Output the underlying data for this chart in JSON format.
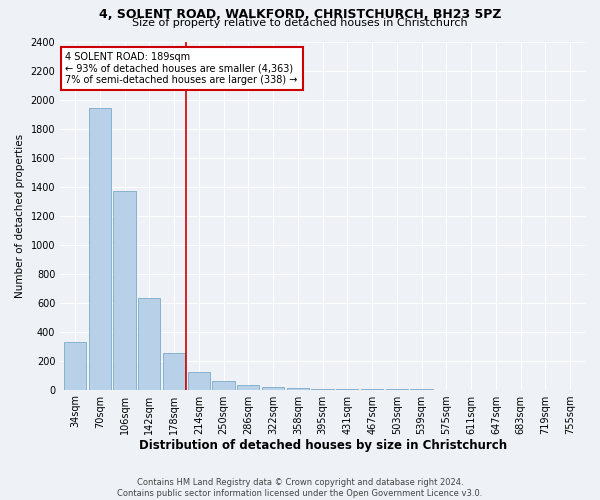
{
  "title": "4, SOLENT ROAD, WALKFORD, CHRISTCHURCH, BH23 5PZ",
  "subtitle": "Size of property relative to detached houses in Christchurch",
  "xlabel": "Distribution of detached houses by size in Christchurch",
  "ylabel": "Number of detached properties",
  "footer_line1": "Contains HM Land Registry data © Crown copyright and database right 2024.",
  "footer_line2": "Contains public sector information licensed under the Open Government Licence v3.0.",
  "categories": [
    "34sqm",
    "70sqm",
    "106sqm",
    "142sqm",
    "178sqm",
    "214sqm",
    "250sqm",
    "286sqm",
    "322sqm",
    "358sqm",
    "395sqm",
    "431sqm",
    "467sqm",
    "503sqm",
    "539sqm",
    "575sqm",
    "611sqm",
    "647sqm",
    "683sqm",
    "719sqm",
    "755sqm"
  ],
  "values": [
    330,
    1940,
    1370,
    630,
    250,
    120,
    60,
    35,
    20,
    10,
    5,
    3,
    2,
    1,
    1,
    0,
    0,
    0,
    0,
    0,
    0
  ],
  "bar_color": "#b8d0e8",
  "bar_edge_color": "#7aaac8",
  "vline_x_pos": 4.5,
  "vline_color": "#cc0000",
  "annotation_text": "4 SOLENT ROAD: 189sqm\n← 93% of detached houses are smaller (4,363)\n7% of semi-detached houses are larger (338) →",
  "annotation_box_color": "#cc0000",
  "ylim": [
    0,
    2400
  ],
  "yticks": [
    0,
    200,
    400,
    600,
    800,
    1000,
    1200,
    1400,
    1600,
    1800,
    2000,
    2200,
    2400
  ],
  "background_color": "#eef2f7",
  "grid_color": "#ffffff",
  "title_fontsize": 9,
  "subtitle_fontsize": 8,
  "xlabel_fontsize": 8.5,
  "ylabel_fontsize": 7.5,
  "tick_fontsize": 7,
  "footer_fontsize": 6,
  "annotation_fontsize": 7
}
